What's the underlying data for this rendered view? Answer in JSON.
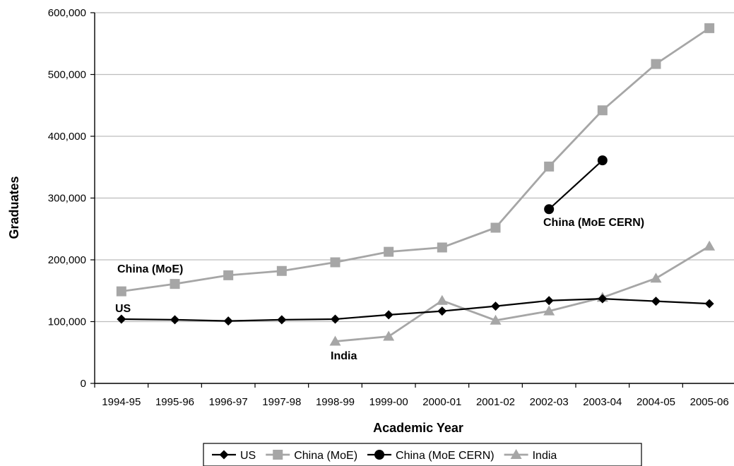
{
  "chart_data": {
    "type": "line",
    "xlabel": "Academic Year",
    "ylabel": "Graduates",
    "ylim": [
      0,
      600000
    ],
    "yticks": [
      "0",
      "100,000",
      "200,000",
      "300,000",
      "400,000",
      "500,000",
      "600,000"
    ],
    "categories": [
      "1994-95",
      "1995-96",
      "1996-97",
      "1997-98",
      "1998-99",
      "1999-00",
      "2000-01",
      "2001-02",
      "2002-03",
      "2003-04",
      "2004-05",
      "2005-06"
    ],
    "grid": "horizontal",
    "legend_position": "bottom",
    "series": [
      {
        "name": "US",
        "color": "#000000",
        "marker": "diamond",
        "values": [
          104000,
          103000,
          101000,
          103000,
          104000,
          111000,
          117000,
          125000,
          134000,
          137000,
          133000,
          129000
        ]
      },
      {
        "name": "China (MoE)",
        "color": "#a6a6a6",
        "marker": "square",
        "values": [
          149000,
          161000,
          175000,
          182000,
          196000,
          213000,
          220000,
          252000,
          351000,
          442000,
          517000,
          575000
        ]
      },
      {
        "name": "China (MoE CERN)",
        "color": "#000000",
        "marker": "circle",
        "values": [
          null,
          null,
          null,
          null,
          null,
          null,
          null,
          null,
          282000,
          361000,
          null,
          null
        ]
      },
      {
        "name": "India",
        "color": "#a6a6a6",
        "marker": "triangle",
        "values": [
          null,
          null,
          null,
          null,
          68000,
          76000,
          134000,
          102000,
          117000,
          139000,
          170000,
          222000
        ]
      }
    ],
    "annotations": [
      {
        "text": "China (MoE)",
        "series": "China (MoE)"
      },
      {
        "text": "US",
        "series": "US"
      },
      {
        "text": "India",
        "series": "India"
      },
      {
        "text": "China (MoE CERN)",
        "series": "China (MoE CERN)"
      }
    ]
  }
}
